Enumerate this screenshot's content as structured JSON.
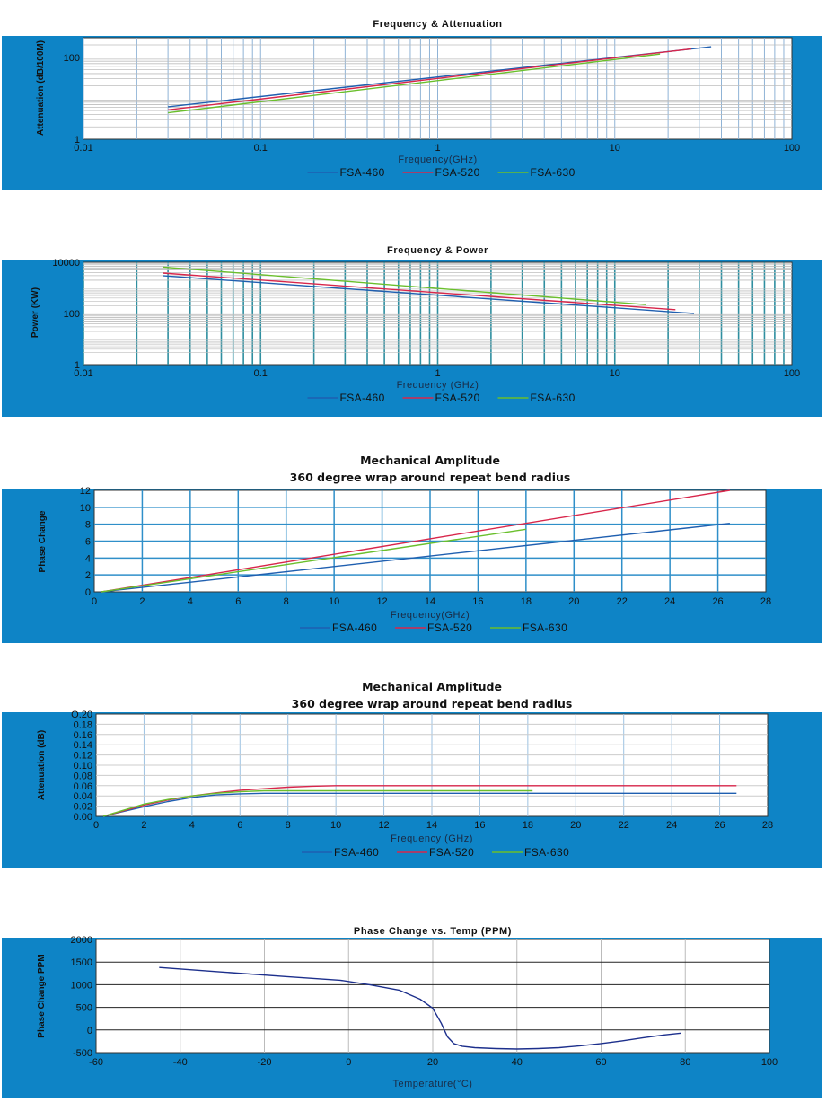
{
  "colors": {
    "band": "#0e84c6",
    "FSA-460": "#1f5fb0",
    "FSA-520": "#d8264b",
    "FSA-630": "#6abf2c",
    "grid_major": "#8fb3d6",
    "grid_minor": "#bdbdbd",
    "plot_border": "#333333",
    "temp_curve": "#1c2f8c"
  },
  "chart_data": [
    {
      "type": "line",
      "title": "Frequency & Attenuation",
      "xlabel": "Frequency(GHz)",
      "ylabel": "Attenuation  (dB/100M)",
      "xscale": "log",
      "yscale": "log",
      "xlim": [
        0.01,
        100
      ],
      "ylim": [
        1,
        300
      ],
      "xticks": [
        "0.01",
        "0.1",
        "1",
        "10",
        "100"
      ],
      "yticks": [
        "1",
        "100"
      ],
      "grid": "on",
      "legend": "bottom-center",
      "series": [
        {
          "name": "FSA-460",
          "x": [
            0.03,
            35
          ],
          "y": [
            6.2,
            180
          ]
        },
        {
          "name": "FSA-520",
          "x": [
            0.03,
            27
          ],
          "y": [
            5.2,
            160
          ]
        },
        {
          "name": "FSA-630",
          "x": [
            0.03,
            18
          ],
          "y": [
            4.4,
            120
          ]
        }
      ]
    },
    {
      "type": "line",
      "title": "Frequency & Power",
      "xlabel": "Frequency (GHz)",
      "ylabel": "Power (KW)",
      "xscale": "log",
      "yscale": "log",
      "xlim": [
        0.01,
        100
      ],
      "ylim": [
        1,
        10000
      ],
      "xticks": [
        "0.01",
        "0.1",
        "1",
        "10",
        "100"
      ],
      "yticks": [
        "1",
        "100",
        "10000"
      ],
      "grid": "on",
      "legend": "bottom-center",
      "series": [
        {
          "name": "FSA-460",
          "x": [
            0.028,
            28
          ],
          "y": [
            3000,
            100
          ]
        },
        {
          "name": "FSA-520",
          "x": [
            0.028,
            22
          ],
          "y": [
            3800,
            140
          ]
        },
        {
          "name": "FSA-630",
          "x": [
            0.028,
            15
          ],
          "y": [
            6500,
            220
          ]
        }
      ]
    },
    {
      "type": "line",
      "title": "Mechanical  Amplitude",
      "subtitle": "360 degree wrap around repeat bend radius",
      "xlabel": "Frequency(GHz)",
      "ylabel": "Phase Change",
      "xlim": [
        0,
        28
      ],
      "ylim": [
        0,
        12
      ],
      "xticks": [
        "0",
        "2",
        "4",
        "6",
        "8",
        "10",
        "12",
        "14",
        "16",
        "18",
        "20",
        "22",
        "24",
        "26",
        "28"
      ],
      "yticks": [
        "0",
        "2",
        "4",
        "6",
        "8",
        "10",
        "12"
      ],
      "grid": "on",
      "legend": "bottom-center",
      "series": [
        {
          "name": "FSA-460",
          "x": [
            0.3,
            26.5
          ],
          "y": [
            0,
            8.1
          ]
        },
        {
          "name": "FSA-520",
          "x": [
            0.3,
            26.5
          ],
          "y": [
            0,
            12.0
          ]
        },
        {
          "name": "FSA-630",
          "x": [
            0.3,
            18
          ],
          "y": [
            0,
            7.4
          ]
        }
      ]
    },
    {
      "type": "line",
      "title": "Mechanical  Amplitude",
      "subtitle": "360 degree wrap around repeat bend radius",
      "xlabel": "Frequency (GHz)",
      "ylabel": "Attenuation (dB)",
      "xlim": [
        0,
        28
      ],
      "ylim": [
        0,
        0.2
      ],
      "xticks": [
        "0",
        "2",
        "4",
        "6",
        "8",
        "10",
        "12",
        "14",
        "16",
        "18",
        "20",
        "22",
        "24",
        "26",
        "28"
      ],
      "yticks": [
        "0.00",
        "0.02",
        "0.04",
        "0.06",
        "0.08",
        "0.10",
        "0.12",
        "0.14",
        "0.16",
        "0.18",
        "O.20"
      ],
      "grid": "on",
      "legend": "bottom-center",
      "series": [
        {
          "name": "FSA-460",
          "x": [
            0.3,
            1,
            2,
            3,
            4,
            5,
            6,
            7,
            26.7
          ],
          "y": [
            0,
            0.008,
            0.019,
            0.029,
            0.037,
            0.042,
            0.044,
            0.045,
            0.045
          ]
        },
        {
          "name": "FSA-520",
          "x": [
            0.3,
            1,
            2,
            3,
            4,
            5,
            6,
            7,
            8,
            9,
            10,
            26.7
          ],
          "y": [
            0,
            0.009,
            0.022,
            0.032,
            0.04,
            0.046,
            0.051,
            0.054,
            0.057,
            0.059,
            0.06,
            0.06
          ]
        },
        {
          "name": "FSA-630",
          "x": [
            0.3,
            1,
            2,
            3,
            4,
            5,
            6,
            7,
            8,
            18.2
          ],
          "y": [
            0,
            0.01,
            0.024,
            0.033,
            0.04,
            0.045,
            0.048,
            0.05,
            0.05,
            0.05
          ]
        }
      ]
    },
    {
      "type": "line",
      "title": "Phase Change vs. Temp (PPM)",
      "xlabel": "Temperature(°C)",
      "ylabel": "Phase Change PPM",
      "xlim": [
        -60,
        100
      ],
      "ylim": [
        -500,
        2000
      ],
      "xticks": [
        "-60",
        "-40",
        "-20",
        "0",
        "20",
        "40",
        "60",
        "80",
        "100"
      ],
      "yticks": [
        "-500",
        "0",
        "500",
        "1000",
        "1500",
        "2000"
      ],
      "grid": "on",
      "series": [
        {
          "x": [
            -45,
            -30,
            -15,
            -2,
            5,
            12,
            17,
            20,
            22,
            23.5,
            25,
            27,
            30,
            35,
            40,
            45,
            50,
            55,
            60,
            65,
            70,
            75,
            79
          ],
          "y": [
            1380,
            1280,
            1180,
            1100,
            1000,
            880,
            680,
            480,
            150,
            -150,
            -300,
            -360,
            -390,
            -410,
            -420,
            -410,
            -390,
            -350,
            -300,
            -240,
            -170,
            -110,
            -70
          ]
        }
      ]
    }
  ]
}
